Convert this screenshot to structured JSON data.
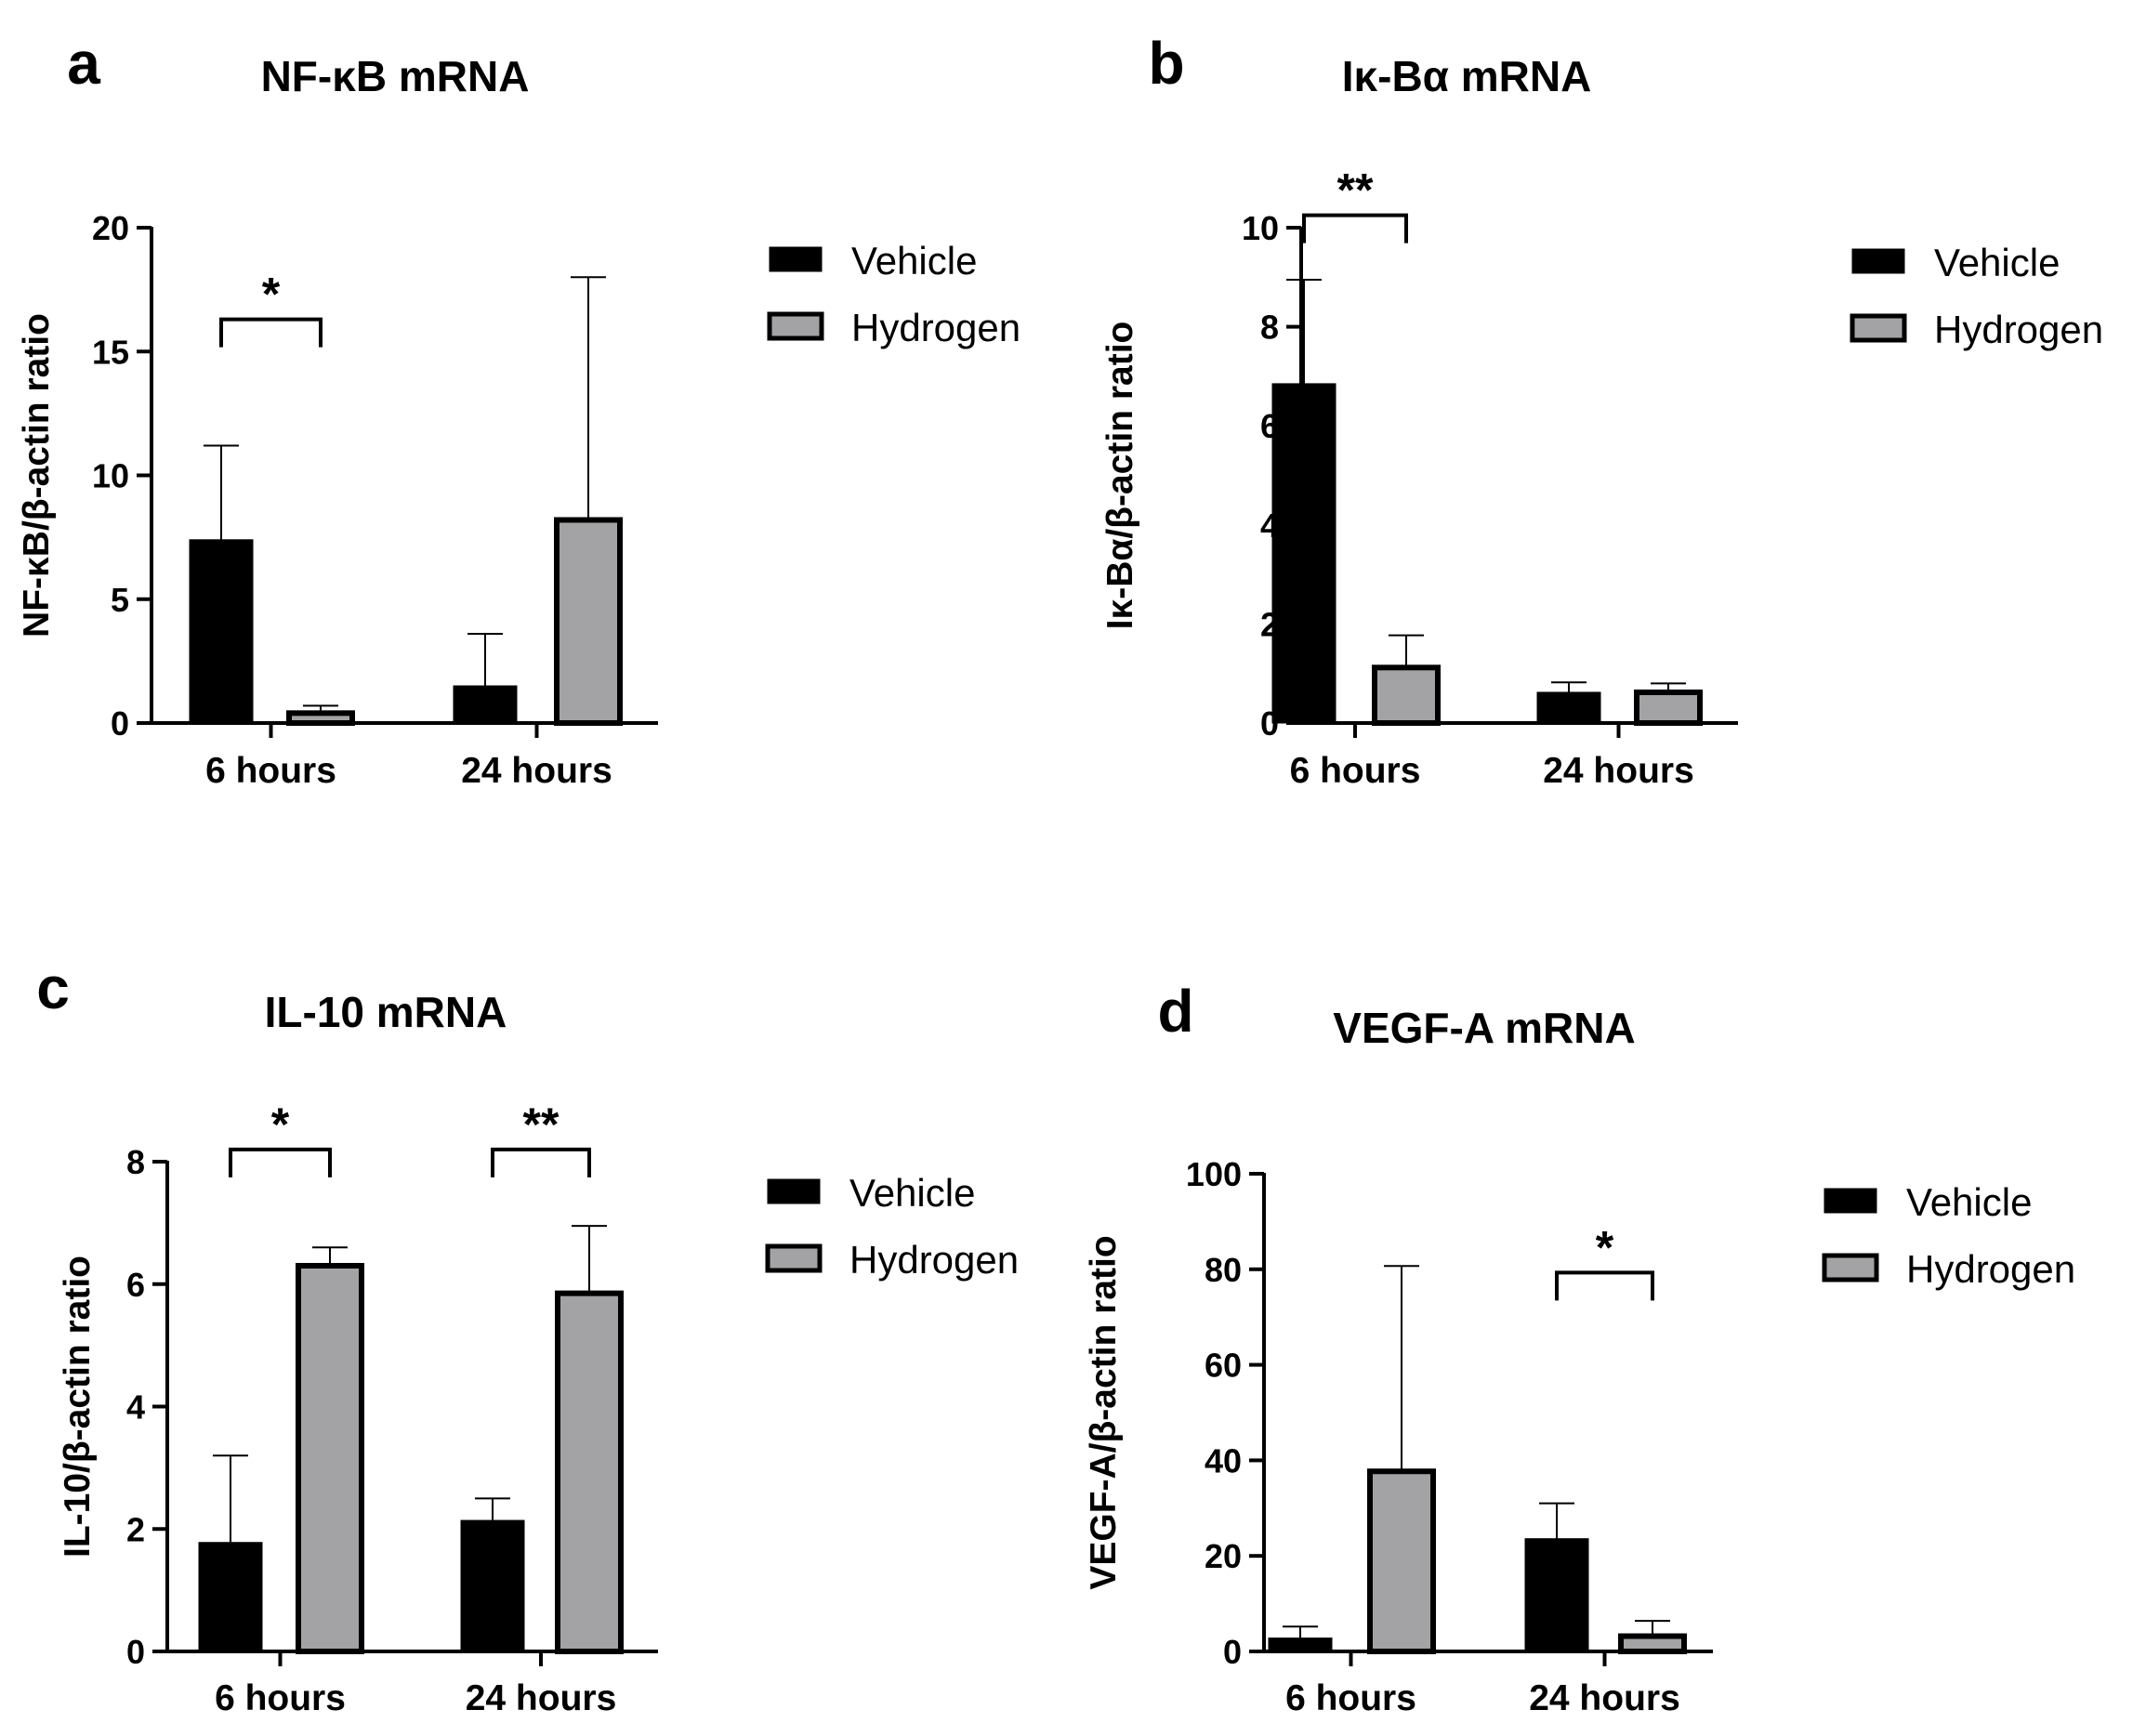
{
  "figure": {
    "legend": [
      "Vehicle",
      "Hydrogen"
    ],
    "series_colors": {
      "Vehicle": "#000000",
      "Hydrogen": "#a3a3a6"
    }
  },
  "chart_data": [
    {
      "type": "bar",
      "panel": "a",
      "title": "NF-κB mRNA",
      "ylabel": "NF-κB/β-actin ratio",
      "xlabel": "",
      "categories": [
        "6 hours",
        "24 hours"
      ],
      "ylim": [
        0,
        20
      ],
      "yticks": [
        0,
        5,
        10,
        15,
        20
      ],
      "series": [
        {
          "name": "Vehicle",
          "values": [
            7.4,
            1.5
          ],
          "error": [
            3.8,
            2.1
          ]
        },
        {
          "name": "Hydrogen",
          "values": [
            0.4,
            8.2
          ],
          "error": [
            0.3,
            9.8
          ]
        }
      ],
      "significance": [
        {
          "category": "6 hours",
          "label": "*",
          "bracket_y": 16.3
        }
      ]
    },
    {
      "type": "bar",
      "panel": "b",
      "title": "Iκ-Bα mRNA",
      "ylabel": "Iκ-Bα/β-actin ratio",
      "xlabel": "",
      "categories": [
        "6 hours",
        "24 hours"
      ],
      "ylim": [
        0,
        10
      ],
      "yticks": [
        0,
        2,
        4,
        6,
        8,
        10
      ],
      "series": [
        {
          "name": "Vehicle",
          "values": [
            6.85,
            0.62
          ],
          "error": [
            2.1,
            0.2
          ]
        },
        {
          "name": "Hydrogen",
          "values": [
            1.12,
            0.62
          ],
          "error": [
            0.65,
            0.18
          ]
        }
      ],
      "significance": [
        {
          "category": "6 hours",
          "label": "**",
          "bracket_y": 10.25
        }
      ]
    },
    {
      "type": "bar",
      "panel": "c",
      "title": "IL-10 mRNA",
      "ylabel": "IL-10/β-actin ratio",
      "xlabel": "",
      "categories": [
        "6 hours",
        "24 hours"
      ],
      "ylim": [
        0,
        8
      ],
      "yticks": [
        0,
        2,
        4,
        6,
        8
      ],
      "series": [
        {
          "name": "Vehicle",
          "values": [
            1.78,
            2.14
          ],
          "error": [
            1.42,
            0.36
          ]
        },
        {
          "name": "Hydrogen",
          "values": [
            6.3,
            5.85
          ],
          "error": [
            0.3,
            1.1
          ]
        }
      ],
      "significance": [
        {
          "category": "6 hours",
          "label": "*",
          "bracket_y": 8.2
        },
        {
          "category": "24 hours",
          "label": "**",
          "bracket_y": 8.2
        }
      ]
    },
    {
      "type": "bar",
      "panel": "d",
      "title": "VEGF-A mRNA",
      "ylabel": "VEGF-A/β-actin ratio",
      "xlabel": "",
      "categories": [
        "6 hours",
        "24 hours"
      ],
      "ylim": [
        0,
        100
      ],
      "yticks": [
        0,
        20,
        40,
        60,
        80,
        100
      ],
      "series": [
        {
          "name": "Vehicle",
          "values": [
            2.8,
            23.6
          ],
          "error": [
            2.4,
            7.4
          ]
        },
        {
          "name": "Hydrogen",
          "values": [
            37.7,
            3.2
          ],
          "error": [
            43.0,
            3.2
          ]
        }
      ],
      "significance": [
        {
          "category": "24 hours",
          "label": "*",
          "bracket_y": 79.3
        }
      ]
    }
  ]
}
